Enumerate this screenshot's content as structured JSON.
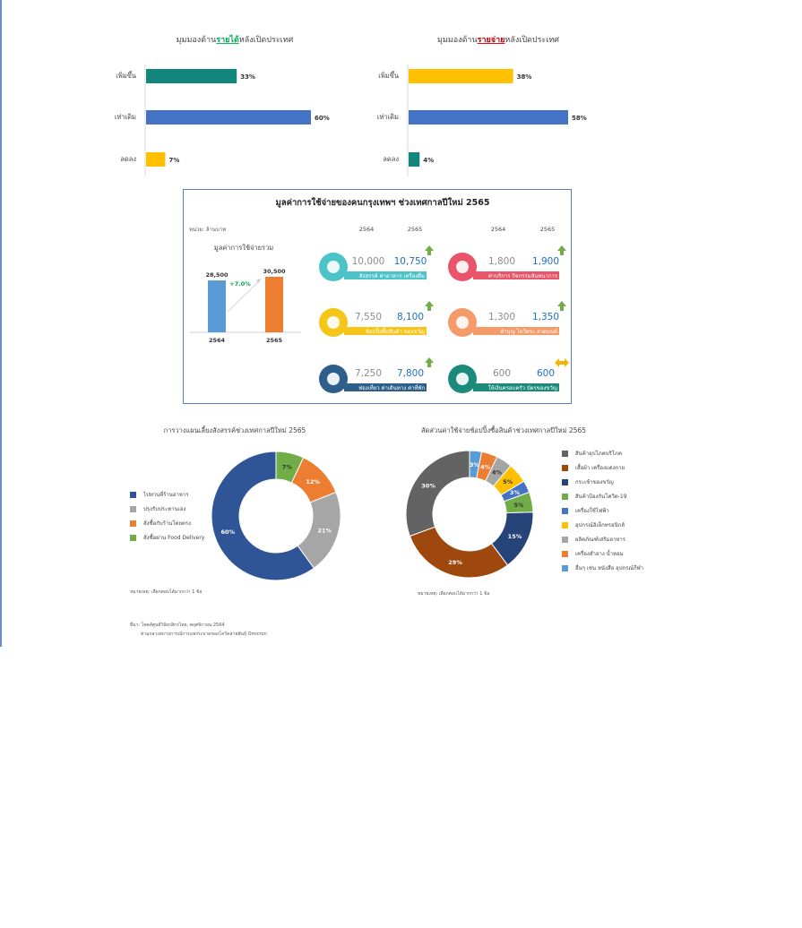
{
  "income": {
    "title_pre": "มุมมองด้าน",
    "title_key": "รายได้",
    "title_post": "หลังเปิดประเทศ"
  },
  "expense": {
    "title_pre": "มุมมองด้าน",
    "title_key": "รายจ่าย",
    "title_post": "หลังเปิดประเทศ"
  },
  "panel": {
    "title": "มูลค่าการใช้จ่ายของคนกรุงเทพฯ ช่วงเทศกาลปีใหม่ 2565",
    "unit": "หน่วย: ล้านบาท",
    "left_title": "มูลค่าการใช้จ่ายรวม",
    "growth": "+7.0%",
    "years_left": [
      "2564",
      "2565"
    ],
    "years_right": [
      "2564",
      "2565"
    ],
    "categories": [
      {
        "label": "สังสรรค์ ค่าอาหาร เครื่องดื่ม",
        "v2564": "10,000",
        "v2565": "10,750",
        "icon": "dinner-plate-icon",
        "color": "#4cc3c7",
        "trend": "up"
      },
      {
        "label": "ค่าบริการ กิจกรรมสันทนาการ",
        "v2564": "1,800",
        "v2565": "1,900",
        "icon": "cinema-icon",
        "color": "#e9546b",
        "trend": "up"
      },
      {
        "label": "ช้อปปิ้งซื้อสินค้า ของขวัญ",
        "v2564": "7,550",
        "v2565": "8,100",
        "icon": "shopping-cart-icon",
        "color": "#f5c518",
        "trend": "up"
      },
      {
        "label": "ทำบุญ ไหว้พระ สวดมนต์",
        "v2564": "1,300",
        "v2565": "1,350",
        "icon": "prayer-hands-icon",
        "color": "#f59a6b",
        "trend": "up"
      },
      {
        "label": "ท่องเที่ยว ค่าเดินทาง ค่าที่พัก",
        "v2564": "7,250",
        "v2565": "7,800",
        "icon": "airplane-icon",
        "color": "#2e5f8a",
        "trend": "up"
      },
      {
        "label": "ให้เงินครอบครัว บัตรของขวัญ",
        "v2564": "600",
        "v2565": "600",
        "icon": "gift-card-icon",
        "color": "#1b8a7a",
        "trend": "flat"
      }
    ]
  },
  "donut1": {
    "title": "การวางแผนเลี้ยงสังสรรค์ช่วงเทศกาลปีใหม่ 2565",
    "note": "หมายเหตุ: เลือกตอบได้มากกว่า 1 ข้อ"
  },
  "donut2": {
    "title": "สัดส่วนค่าใช้จ่ายช้อปปิ้งซื้อสินค้าช่วงเทศกาลปีใหม่ 2565",
    "note": "หมายเหตุ: เลือกตอบได้มากกว่า 1 ข้อ"
  },
  "source": {
    "line1": "ที่มา: โพลล์ศูนย์วิจัยกสิกรไทย, พฤศจิกายน 2564",
    "line2": "ท่ามกลางสถานการณ์การแพร่ระบาดของโควิดสายพันธุ์ Omicron"
  },
  "chart_data": [
    {
      "type": "bar",
      "orientation": "horizontal",
      "categories": [
        "เพิ่มขึ้น",
        "เท่าเดิม",
        "ลดลง"
      ],
      "values": [
        33,
        60,
        7
      ],
      "value_labels": [
        "33%",
        "60%",
        "7%"
      ],
      "colors": [
        "#12857c",
        "#4472c4",
        "#ffc000"
      ],
      "xlim": [
        0,
        60
      ]
    },
    {
      "type": "bar",
      "orientation": "horizontal",
      "categories": [
        "เพิ่มขึ้น",
        "เท่าเดิม",
        "ลดลง"
      ],
      "values": [
        38,
        58,
        4
      ],
      "value_labels": [
        "38%",
        "58%",
        "4%"
      ],
      "colors": [
        "#ffc000",
        "#4472c4",
        "#12857c"
      ],
      "xlim": [
        0,
        58
      ]
    },
    {
      "type": "bar",
      "categories": [
        "2564",
        "2565"
      ],
      "values": [
        28500,
        30500
      ],
      "value_labels": [
        "28,500",
        "30,500"
      ],
      "colors": [
        "#5b9bd5",
        "#ed7d31"
      ],
      "ylim": [
        0,
        30500
      ]
    },
    {
      "type": "pie",
      "donut": true,
      "categories": [
        "ไปทานที่ร้านอาหาร",
        "ปรุงรับประทานเอง",
        "สั่งซื้อกับร้านโดยตรง",
        "สั่งซื้อผ่าน Food Delivery"
      ],
      "values": [
        60,
        21,
        12,
        7
      ],
      "value_labels": [
        "60%",
        "21%",
        "12%",
        "7%"
      ],
      "colors": [
        "#2f5597",
        "#a6a6a6",
        "#ed7d31",
        "#70ad47"
      ],
      "legend": "left",
      "order": [
        3,
        2,
        1,
        0
      ]
    },
    {
      "type": "pie",
      "donut": true,
      "categories": [
        "สินค้าอุปโภคบริโภค",
        "เสื้อผ้า เครื่องแต่งกาย",
        "กระเช้าของขวัญ",
        "สินค้าป้องกันโควิด-19",
        "เครื่องใช้ไฟฟ้า",
        "อุปกรณ์อิเล็กทรอนิกส์",
        "ผลิตภัณฑ์เสริมอาหาร",
        "เครื่องสำอาง น้ำหอม",
        "อื่นๆ เช่น หนังสือ อุปกรณ์กีฬา"
      ],
      "values": [
        30,
        29,
        15,
        5,
        3,
        5,
        4,
        4,
        3
      ],
      "value_labels": [
        "30%",
        "29%",
        "15%",
        "5%",
        "3%",
        "5%",
        "4%",
        "4%",
        "3%"
      ],
      "colors": [
        "#636363",
        "#9e480e",
        "#264478",
        "#70ad47",
        "#4472c4",
        "#ffc000",
        "#a5a5a5",
        "#ed7d31",
        "#5b9bd5"
      ],
      "legend": "right",
      "order": [
        8,
        7,
        6,
        5,
        4,
        3,
        2,
        1,
        0
      ]
    }
  ]
}
